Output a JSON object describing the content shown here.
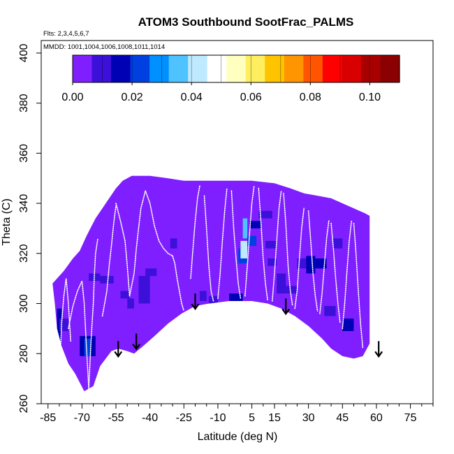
{
  "chart_data": {
    "type": "heatmap",
    "title": "ATOM3 Southbound SootFrac_PALMS",
    "flights_note": "Flts: 2,3,4,5,6,7",
    "dates_note": "MMDD: 1001,1004,1006,1008,1011,1014",
    "xlabel": "Latitude (deg N)",
    "ylabel": "Theta (C)",
    "xlim": [
      -88,
      85
    ],
    "ylim": [
      260,
      405
    ],
    "x_major_ticks": [
      -85,
      -70,
      -55,
      -40,
      -25,
      -10,
      5,
      15,
      30,
      45,
      60,
      75
    ],
    "x_minor_ticks": [
      -80,
      -75,
      -65,
      -60,
      -50,
      -45,
      -35,
      -30,
      -20,
      -15,
      -5,
      0,
      10,
      20,
      25,
      35,
      40,
      50,
      55,
      65,
      70,
      80,
      85
    ],
    "y_ticks": [
      260,
      280,
      300,
      320,
      340,
      360,
      380,
      400
    ],
    "colorbar": {
      "range": [
        0.0,
        0.11
      ],
      "tick_values": [
        0.0,
        0.02,
        0.04,
        0.06,
        0.08,
        0.1
      ],
      "tick_labels": [
        "0.00",
        "0.02",
        "0.04",
        "0.06",
        "0.08",
        "0.10"
      ],
      "colors": [
        "#7f1fff",
        "#3c10d8",
        "#0000b4",
        "#0040e0",
        "#0090ff",
        "#4fc3ff",
        "#bfe9ff",
        "#ffffff",
        "#ffffbf",
        "#ffee60",
        "#ffc400",
        "#ff9500",
        "#ff5500",
        "#ff0000",
        "#d80000",
        "#a80000",
        "#8b0000"
      ]
    },
    "background_value": 0.0,
    "domain": {
      "upper": [
        [
          -83,
          308
        ],
        [
          -80,
          311
        ],
        [
          -78,
          313
        ],
        [
          -74,
          318
        ],
        [
          -71,
          321
        ],
        [
          -68,
          327
        ],
        [
          -64,
          334
        ],
        [
          -61,
          338
        ],
        [
          -58,
          342
        ],
        [
          -55,
          346
        ],
        [
          -52,
          349
        ],
        [
          -50,
          350
        ],
        [
          -48,
          351
        ],
        [
          -40,
          351
        ],
        [
          -32,
          350
        ],
        [
          -25,
          349
        ],
        [
          -15,
          349
        ],
        [
          -5,
          349
        ],
        [
          5,
          349
        ],
        [
          15,
          348
        ],
        [
          22,
          346
        ],
        [
          28,
          344
        ],
        [
          34,
          343
        ],
        [
          40,
          342
        ],
        [
          45,
          340
        ],
        [
          50,
          338
        ],
        [
          55,
          336
        ],
        [
          57,
          335
        ],
        [
          57,
          305
        ]
      ],
      "lower": [
        [
          -83,
          308
        ],
        [
          -82,
          300
        ],
        [
          -81,
          290
        ],
        [
          -79,
          283
        ],
        [
          -76,
          276
        ],
        [
          -73,
          272
        ],
        [
          -69,
          265
        ],
        [
          -65,
          267
        ],
        [
          -62,
          275
        ],
        [
          -57,
          281
        ],
        [
          -54,
          282
        ],
        [
          -50,
          281
        ],
        [
          -47,
          280
        ],
        [
          -43,
          283
        ],
        [
          -38,
          287
        ],
        [
          -32,
          292
        ],
        [
          -26,
          296
        ],
        [
          -20,
          299
        ],
        [
          -14,
          300
        ],
        [
          -5,
          301
        ],
        [
          5,
          301
        ],
        [
          12,
          300
        ],
        [
          18,
          298
        ],
        [
          24,
          295
        ],
        [
          30,
          291
        ],
        [
          36,
          286
        ],
        [
          40,
          282
        ],
        [
          45,
          279
        ],
        [
          50,
          278
        ],
        [
          54,
          279
        ],
        [
          57,
          284
        ],
        [
          57,
          305
        ]
      ]
    },
    "cells": [
      {
        "x": [
          -81,
          -79
        ],
        "y": [
          280,
          298
        ],
        "v": 0.012
      },
      {
        "x": [
          -80,
          -78
        ],
        "y": [
          268,
          276
        ],
        "v": 0.008
      },
      {
        "x": [
          -80,
          -76
        ],
        "y": [
          289,
          294
        ],
        "v": 0.008
      },
      {
        "x": [
          -77,
          -74
        ],
        "y": [
          269,
          273
        ],
        "v": 0.01
      },
      {
        "x": [
          -71,
          -64
        ],
        "y": [
          279,
          287
        ],
        "v": 0.013
      },
      {
        "x": [
          -69,
          -66
        ],
        "y": [
          279,
          286
        ],
        "v": 0.018
      },
      {
        "x": [
          -67,
          -62
        ],
        "y": [
          309,
          312
        ],
        "v": 0.006
      },
      {
        "x": [
          -62,
          -56
        ],
        "y": [
          308,
          311
        ],
        "v": 0.006
      },
      {
        "x": [
          -53,
          -49
        ],
        "y": [
          302,
          305
        ],
        "v": 0.007
      },
      {
        "x": [
          -50,
          -47
        ],
        "y": [
          298,
          302
        ],
        "v": 0.01
      },
      {
        "x": [
          -45,
          -40
        ],
        "y": [
          300,
          306
        ],
        "v": 0.006
      },
      {
        "x": [
          -45,
          -40
        ],
        "y": [
          305,
          311
        ],
        "v": 0.007
      },
      {
        "x": [
          -42,
          -37
        ],
        "y": [
          311,
          314
        ],
        "v": 0.005
      },
      {
        "x": [
          -31,
          -28
        ],
        "y": [
          322,
          326
        ],
        "v": 0.008
      },
      {
        "x": [
          -18,
          -15
        ],
        "y": [
          301,
          305
        ],
        "v": 0.01
      },
      {
        "x": [
          -14,
          -10
        ],
        "y": [
          300,
          303
        ],
        "v": 0.007
      },
      {
        "x": [
          -5,
          1
        ],
        "y": [
          301,
          304
        ],
        "v": 0.012
      },
      {
        "x": [
          -1,
          3
        ],
        "y": [
          316,
          322
        ],
        "v": 0.02
      },
      {
        "x": [
          0,
          3
        ],
        "y": [
          318,
          325
        ],
        "v": 0.038
      },
      {
        "x": [
          1,
          3
        ],
        "y": [
          326,
          334
        ],
        "v": 0.036
      },
      {
        "x": [
          3,
          7
        ],
        "y": [
          323,
          327
        ],
        "v": 0.022
      },
      {
        "x": [
          4,
          9
        ],
        "y": [
          330,
          333
        ],
        "v": 0.012
      },
      {
        "x": [
          8,
          14
        ],
        "y": [
          334,
          337
        ],
        "v": 0.008
      },
      {
        "x": [
          11,
          16
        ],
        "y": [
          322,
          325
        ],
        "v": 0.007
      },
      {
        "x": [
          12,
          16
        ],
        "y": [
          315,
          318
        ],
        "v": 0.006
      },
      {
        "x": [
          16,
          20
        ],
        "y": [
          304,
          312
        ],
        "v": 0.01
      },
      {
        "x": [
          20,
          25
        ],
        "y": [
          304,
          307
        ],
        "v": 0.006
      },
      {
        "x": [
          25,
          30
        ],
        "y": [
          314,
          318
        ],
        "v": 0.01
      },
      {
        "x": [
          29,
          33
        ],
        "y": [
          312,
          319
        ],
        "v": 0.016
      },
      {
        "x": [
          33,
          38
        ],
        "y": [
          314,
          318
        ],
        "v": 0.012
      },
      {
        "x": [
          37,
          42
        ],
        "y": [
          295,
          299
        ],
        "v": 0.008
      },
      {
        "x": [
          41,
          45
        ],
        "y": [
          322,
          326
        ],
        "v": 0.008
      },
      {
        "x": [
          45,
          50
        ],
        "y": [
          289,
          294
        ],
        "v": 0.012
      }
    ],
    "flight_tracks": [
      {
        "lat": [
          -79,
          -79.5,
          -79,
          -78,
          -77,
          -76,
          -75
        ],
        "theta": [
          268,
          280,
          292,
          303,
          310,
          300,
          285
        ]
      },
      {
        "lat": [
          -76,
          -74,
          -72,
          -70,
          -69,
          -68,
          -67
        ],
        "theta": [
          290,
          299,
          305,
          309,
          300,
          282,
          266
        ]
      },
      {
        "lat": [
          -67,
          -66,
          -65,
          -64.5,
          -64,
          -63
        ],
        "theta": [
          266,
          285,
          300,
          312,
          320,
          326
        ]
      },
      {
        "lat": [
          -61,
          -59,
          -58,
          -57,
          -56,
          -55
        ],
        "theta": [
          295,
          305,
          315,
          323,
          332,
          339
        ]
      },
      {
        "lat": [
          -55,
          -53,
          -51,
          -50,
          -49
        ],
        "theta": [
          340,
          333,
          325,
          315,
          303
        ]
      },
      {
        "lat": [
          -49,
          -47,
          -46,
          -45,
          -44,
          -42
        ],
        "theta": [
          303,
          312,
          322,
          330,
          338,
          345
        ]
      },
      {
        "lat": [
          -42,
          -40,
          -38,
          -36,
          -34,
          -32,
          -30
        ],
        "theta": [
          345,
          340,
          331,
          325,
          322,
          320,
          319
        ]
      },
      {
        "lat": [
          -30,
          -29,
          -28,
          -27,
          -26,
          -25
        ],
        "theta": [
          319,
          316,
          310,
          305,
          300,
          297
        ]
      },
      {
        "lat": [
          -22,
          -21,
          -20,
          -19,
          -18
        ],
        "theta": [
          310,
          322,
          333,
          342,
          347
        ]
      },
      {
        "lat": [
          -16,
          -15,
          -14,
          -13,
          -12
        ],
        "theta": [
          343,
          330,
          315,
          305,
          301
        ]
      },
      {
        "lat": [
          -10,
          -9,
          -8,
          -7,
          -6
        ],
        "theta": [
          302,
          312,
          325,
          337,
          346
        ]
      },
      {
        "lat": [
          -4,
          -3,
          -2,
          -1,
          0
        ],
        "theta": [
          345,
          330,
          318,
          308,
          302
        ]
      },
      {
        "lat": [
          2,
          3,
          4,
          5,
          6
        ],
        "theta": [
          303,
          315,
          328,
          340,
          347
        ]
      },
      {
        "lat": [
          8,
          9,
          10,
          11,
          12
        ],
        "theta": [
          346,
          333,
          318,
          308,
          301
        ]
      },
      {
        "lat": [
          14,
          15,
          16,
          17,
          18
        ],
        "theta": [
          301,
          312,
          325,
          338,
          345
        ]
      },
      {
        "lat": [
          19,
          20,
          21,
          22,
          23
        ],
        "theta": [
          344,
          332,
          315,
          305,
          299
        ]
      },
      {
        "lat": [
          24,
          25,
          26,
          27,
          28
        ],
        "theta": [
          298,
          305,
          318,
          330,
          338
        ]
      },
      {
        "lat": [
          30,
          31,
          32,
          33,
          34
        ],
        "theta": [
          337,
          325,
          312,
          303,
          297
        ]
      },
      {
        "lat": [
          35,
          36,
          37,
          38,
          39
        ],
        "theta": [
          296,
          304,
          315,
          326,
          333
        ]
      },
      {
        "lat": [
          40,
          41,
          42,
          43,
          44
        ],
        "theta": [
          332,
          322,
          310,
          300,
          292
        ]
      },
      {
        "lat": [
          45,
          46,
          47,
          48,
          49
        ],
        "theta": [
          290,
          300,
          313,
          325,
          333
        ]
      },
      {
        "lat": [
          50,
          51,
          52,
          53,
          54
        ],
        "theta": [
          332,
          320,
          305,
          292,
          282
        ]
      }
    ],
    "arrows": [
      {
        "lat": -54,
        "theta": 285
      },
      {
        "lat": -46,
        "theta": 288
      },
      {
        "lat": -20,
        "theta": 304
      },
      {
        "lat": 20,
        "theta": 302
      },
      {
        "lat": 61,
        "theta": 285
      }
    ]
  }
}
